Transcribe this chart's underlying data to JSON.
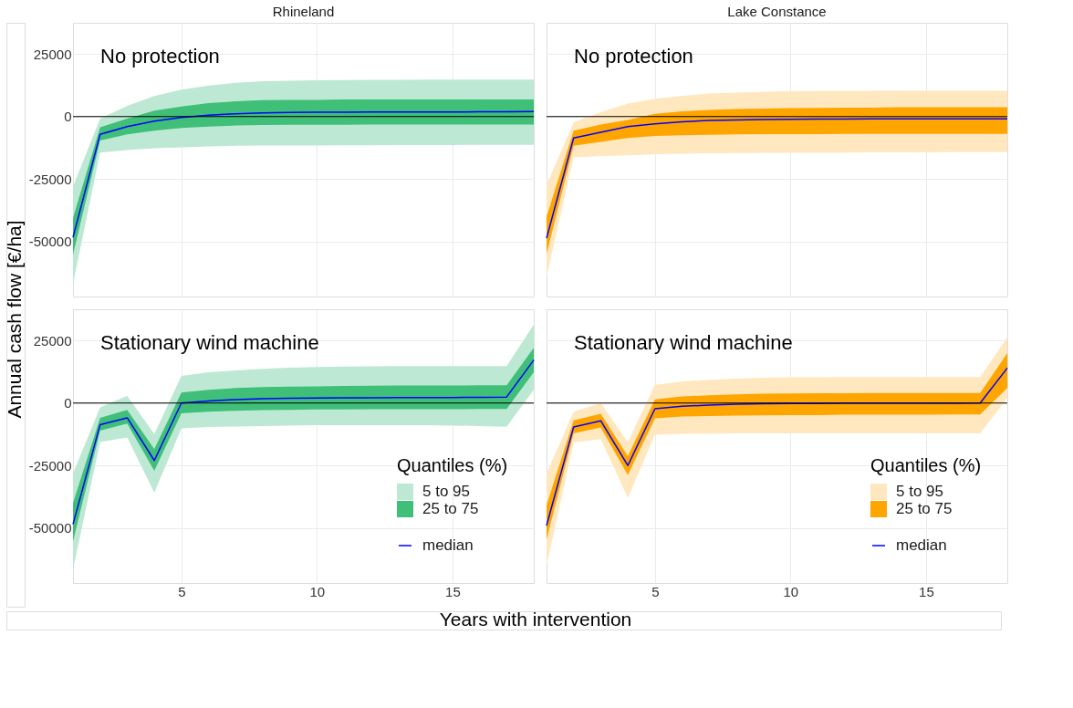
{
  "chart_data": [
    {
      "type": "line",
      "title": "Rhineland",
      "ylabel": "Annual cash flow [€/ha]",
      "annotations": [
        "No protection"
      ],
      "x": [
        1,
        2,
        3,
        4,
        5,
        6,
        7,
        8,
        9,
        10,
        11,
        12,
        13,
        14,
        15,
        16,
        17,
        18
      ],
      "xlim": [
        1,
        18
      ],
      "xticks": [
        5,
        10,
        15
      ],
      "ylim": [
        -72000,
        37500
      ],
      "yticks": [
        -50000,
        -25000,
        0,
        25000
      ],
      "grid": true,
      "legend": false,
      "tick_labels": "y",
      "ref_lines": [
        {
          "axis": "y",
          "value": 0,
          "color": "#000000"
        }
      ],
      "series": [
        {
          "type": "area",
          "color": "#bde9d4",
          "values": [
            null,
            null,
            null,
            null,
            null,
            null,
            null,
            null,
            null,
            null,
            null,
            null,
            null,
            null,
            null,
            null,
            null,
            null
          ],
          "lower": [
            -67000,
            -14400,
            -13400,
            -12700,
            -12300,
            -12000,
            -11700,
            -11600,
            -11600,
            -11600,
            -11500,
            -11500,
            -11400,
            -11400,
            -11400,
            -11300,
            -11300,
            -11300
          ],
          "upper": [
            -28000,
            -800,
            4300,
            8200,
            10800,
            12400,
            13500,
            14100,
            14300,
            14500,
            14600,
            14700,
            14700,
            14800,
            14800,
            14800,
            14800,
            14800
          ]
        },
        {
          "type": "area",
          "color": "#40bf78",
          "values": [
            null,
            null,
            null,
            null,
            null,
            null,
            null,
            null,
            null,
            null,
            null,
            null,
            null,
            null,
            null,
            null,
            null,
            null
          ],
          "lower": [
            -55300,
            -9600,
            -7100,
            -5700,
            -4600,
            -4000,
            -3600,
            -3400,
            -3300,
            -3300,
            -3300,
            -3200,
            -3200,
            -3200,
            -3200,
            -3200,
            -3200,
            -3200
          ],
          "upper": [
            -40600,
            -4300,
            -800,
            2400,
            4000,
            5400,
            6100,
            6600,
            6700,
            6700,
            6800,
            6800,
            6800,
            6800,
            6800,
            6800,
            6800,
            6800
          ]
        },
        {
          "color": "#0000ff",
          "values": [
            -48300,
            -7100,
            -4000,
            -1800,
            -400,
            500,
            1100,
            1500,
            1600,
            1700,
            1700,
            1800,
            1800,
            1800,
            1800,
            1900,
            1900,
            2000
          ]
        }
      ]
    },
    {
      "type": "line",
      "title": "Lake Constance",
      "annotations": [
        "No protection"
      ],
      "x": [
        1,
        2,
        3,
        4,
        5,
        6,
        7,
        8,
        9,
        10,
        11,
        12,
        13,
        14,
        15,
        16,
        17,
        18
      ],
      "xlim": [
        1,
        18
      ],
      "xticks": [
        5,
        10,
        15
      ],
      "ylim": [
        -72000,
        37500
      ],
      "yticks": [
        -50000,
        -25000,
        0,
        25000
      ],
      "grid": true,
      "legend": false,
      "tick_labels": false,
      "ref_lines": [
        {
          "axis": "y",
          "value": 0,
          "color": "#000000"
        }
      ],
      "series": [
        {
          "type": "area",
          "color": "#ffe8bf",
          "values": [
            null,
            null,
            null,
            null,
            null,
            null,
            null,
            null,
            null,
            null,
            null,
            null,
            null,
            null,
            null,
            null,
            null,
            null
          ],
          "lower": [
            -64200,
            -16300,
            -15800,
            -15500,
            -15100,
            -14900,
            -14700,
            -14600,
            -14500,
            -14500,
            -14400,
            -14400,
            -14300,
            -14300,
            -14300,
            -14200,
            -14200,
            -14200
          ],
          "upper": [
            -27500,
            -2300,
            1700,
            5200,
            7100,
            8300,
            9200,
            9600,
            9900,
            10100,
            10200,
            10200,
            10300,
            10300,
            10300,
            10300,
            10300,
            10300
          ]
        },
        {
          "type": "area",
          "color": "#ffa500",
          "values": [
            null,
            null,
            null,
            null,
            null,
            null,
            null,
            null,
            null,
            null,
            null,
            null,
            null,
            null,
            null,
            null,
            null,
            null
          ],
          "lower": [
            -55000,
            -11700,
            -10100,
            -8600,
            -7800,
            -7500,
            -7300,
            -7100,
            -7000,
            -7000,
            -7000,
            -6900,
            -6900,
            -6900,
            -6900,
            -6900,
            -6900,
            -6900
          ],
          "upper": [
            -40100,
            -5700,
            -3200,
            -1400,
            1100,
            2100,
            2600,
            3000,
            3200,
            3400,
            3500,
            3600,
            3600,
            3700,
            3700,
            3700,
            3700,
            3700
          ]
        },
        {
          "color": "#0000ff",
          "values": [
            -48700,
            -8600,
            -6300,
            -4000,
            -2900,
            -2100,
            -1600,
            -1400,
            -1200,
            -1100,
            -1000,
            -1000,
            -900,
            -900,
            -900,
            -900,
            -900,
            -900
          ]
        }
      ]
    },
    {
      "type": "line",
      "xlabel": "Years with intervention",
      "annotations": [
        "Stationary wind machine"
      ],
      "legend_title": "Quantiles (%)",
      "x": [
        1,
        2,
        3,
        4,
        5,
        6,
        7,
        8,
        9,
        10,
        11,
        12,
        13,
        14,
        15,
        16,
        17,
        18
      ],
      "xlim": [
        1,
        18
      ],
      "xticks": [
        5,
        10,
        15
      ],
      "ylim": [
        -72000,
        37500
      ],
      "yticks": [
        -50000,
        -25000,
        0,
        25000
      ],
      "grid": true,
      "legend": "bottom right",
      "ref_lines": [
        {
          "axis": "y",
          "value": 0,
          "color": "#000000"
        }
      ],
      "series": [
        {
          "name": "5 to 95",
          "type": "area",
          "color": "#bde9d4",
          "values": [
            null,
            null,
            null,
            null,
            null,
            null,
            null,
            null,
            null,
            null,
            null,
            null,
            null,
            null,
            null,
            null,
            null,
            null
          ],
          "lower": [
            -66600,
            -15600,
            -13800,
            -35900,
            -10100,
            -9600,
            -9400,
            -9200,
            -9000,
            -8900,
            -8900,
            -8900,
            -8900,
            -8900,
            -9000,
            -9200,
            -9500,
            5300
          ],
          "upper": [
            -28200,
            -1700,
            2900,
            -12400,
            10900,
            12300,
            13000,
            13700,
            14100,
            14400,
            14600,
            14700,
            14800,
            14800,
            14800,
            14800,
            14800,
            31400
          ]
        },
        {
          "name": "25 to 75",
          "type": "area",
          "color": "#40bf78",
          "values": [
            null,
            null,
            null,
            null,
            null,
            null,
            null,
            null,
            null,
            null,
            null,
            null,
            null,
            null,
            null,
            null,
            null,
            null
          ],
          "lower": [
            -55400,
            -11000,
            -8200,
            -27100,
            -4100,
            -3500,
            -3100,
            -2800,
            -2700,
            -2600,
            -2600,
            -2500,
            -2500,
            -2500,
            -2500,
            -2400,
            -2400,
            12300
          ],
          "upper": [
            -40100,
            -5900,
            -2700,
            -18400,
            4200,
            5300,
            6000,
            6400,
            6600,
            6700,
            6800,
            6900,
            7000,
            7000,
            7000,
            7100,
            7100,
            22100
          ]
        },
        {
          "name": "median",
          "color": "#0000ff",
          "values": [
            -48500,
            -8700,
            -5900,
            -23000,
            0,
            800,
            1400,
            1700,
            1900,
            2000,
            2100,
            2100,
            2200,
            2200,
            2200,
            2300,
            2400,
            17200
          ]
        }
      ]
    },
    {
      "type": "line",
      "annotations": [
        "Stationary wind machine"
      ],
      "legend_title": "Quantiles (%)",
      "x": [
        1,
        2,
        3,
        4,
        5,
        6,
        7,
        8,
        9,
        10,
        11,
        12,
        13,
        14,
        15,
        16,
        17,
        18
      ],
      "xlim": [
        1,
        18
      ],
      "xticks": [
        5,
        10,
        15
      ],
      "ylim": [
        -72000,
        37500
      ],
      "yticks": [
        -50000,
        -25000,
        0,
        25000
      ],
      "grid": true,
      "legend": "bottom right",
      "tick_labels": "x",
      "ref_lines": [
        {
          "axis": "y",
          "value": 0,
          "color": "#000000"
        }
      ],
      "series": [
        {
          "name": "5 to 95",
          "type": "area",
          "color": "#ffe8bf",
          "values": [
            null,
            null,
            null,
            null,
            null,
            null,
            null,
            null,
            null,
            null,
            null,
            null,
            null,
            null,
            null,
            null,
            null,
            null
          ],
          "lower": [
            -65100,
            -15800,
            -14400,
            -38000,
            -12700,
            -12300,
            -12200,
            -12100,
            -12100,
            -12100,
            -12100,
            -12100,
            -12100,
            -12100,
            -12100,
            -12100,
            -12100,
            2000
          ],
          "upper": [
            -28200,
            -3500,
            0,
            -15600,
            7300,
            8600,
            9300,
            9800,
            10100,
            10300,
            10300,
            10400,
            10400,
            10400,
            10400,
            10400,
            10400,
            26300
          ]
        },
        {
          "name": "25 to 75",
          "type": "area",
          "color": "#ffa500",
          "values": [
            null,
            null,
            null,
            null,
            null,
            null,
            null,
            null,
            null,
            null,
            null,
            null,
            null,
            null,
            null,
            null,
            null,
            null
          ],
          "lower": [
            -54700,
            -12100,
            -9800,
            -28800,
            -6100,
            -5400,
            -5200,
            -5000,
            -4900,
            -4800,
            -4800,
            -4700,
            -4700,
            -4700,
            -4700,
            -4600,
            -4600,
            6000
          ],
          "upper": [
            -40900,
            -6900,
            -4300,
            -21300,
            1500,
            2600,
            3100,
            3500,
            3700,
            3800,
            3900,
            3900,
            4000,
            4000,
            4000,
            4000,
            4000,
            20000
          ]
        },
        {
          "name": "median",
          "color": "#0000ff",
          "values": [
            -49000,
            -9600,
            -7100,
            -25000,
            -2300,
            -1300,
            -800,
            -500,
            -300,
            -200,
            -200,
            -100,
            -100,
            -100,
            -100,
            -100,
            0,
            14000
          ]
        }
      ]
    }
  ]
}
